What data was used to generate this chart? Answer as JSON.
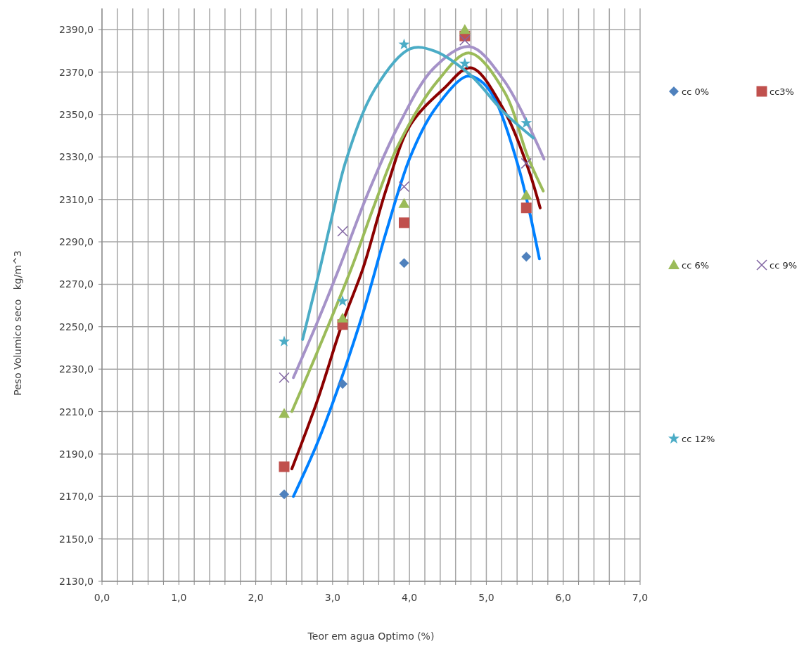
{
  "chart_data": {
    "type": "scatter",
    "xlabel": "Teor em agua Optimo (%)",
    "ylabel": "Peso Volumico seco   kg/m^3",
    "xlim": [
      0,
      7
    ],
    "ylim": [
      2130,
      2400
    ],
    "xticks": [
      {
        "value": 0,
        "label": "0,0"
      },
      {
        "value": 0.2,
        "label": null
      },
      {
        "value": 0.4,
        "label": null
      },
      {
        "value": 0.6,
        "label": null
      },
      {
        "value": 0.8,
        "label": null
      },
      {
        "value": 1,
        "label": "1,0"
      },
      {
        "value": 1.2,
        "label": null
      },
      {
        "value": 1.4,
        "label": null
      },
      {
        "value": 1.6,
        "label": null
      },
      {
        "value": 1.8,
        "label": null
      },
      {
        "value": 2,
        "label": "2,0"
      },
      {
        "value": 2.2,
        "label": null
      },
      {
        "value": 2.4,
        "label": null
      },
      {
        "value": 2.6,
        "label": null
      },
      {
        "value": 2.8,
        "label": null
      },
      {
        "value": 3,
        "label": "3,0"
      },
      {
        "value": 3.2,
        "label": null
      },
      {
        "value": 3.4,
        "label": null
      },
      {
        "value": 3.6,
        "label": null
      },
      {
        "value": 3.8,
        "label": null
      },
      {
        "value": 4,
        "label": "4,0"
      },
      {
        "value": 4.2,
        "label": null
      },
      {
        "value": 4.4,
        "label": null
      },
      {
        "value": 4.6,
        "label": null
      },
      {
        "value": 4.8,
        "label": null
      },
      {
        "value": 5,
        "label": "5,0"
      },
      {
        "value": 5.2,
        "label": null
      },
      {
        "value": 5.4,
        "label": null
      },
      {
        "value": 5.6,
        "label": null
      },
      {
        "value": 5.8,
        "label": null
      },
      {
        "value": 6,
        "label": "6,0"
      },
      {
        "value": 6.2,
        "label": null
      },
      {
        "value": 6.4,
        "label": null
      },
      {
        "value": 6.6,
        "label": null
      },
      {
        "value": 6.8,
        "label": null
      },
      {
        "value": 7,
        "label": "7,0"
      }
    ],
    "yticks": [
      {
        "value": 2130,
        "label": "2130,0"
      },
      {
        "value": 2150,
        "label": "2150,0"
      },
      {
        "value": 2170,
        "label": "2170,0"
      },
      {
        "value": 2190,
        "label": "2190,0"
      },
      {
        "value": 2210,
        "label": "2210,0"
      },
      {
        "value": 2230,
        "label": "2230,0"
      },
      {
        "value": 2250,
        "label": "2250,0"
      },
      {
        "value": 2270,
        "label": "2270,0"
      },
      {
        "value": 2290,
        "label": "2290,0"
      },
      {
        "value": 2310,
        "label": "2310,0"
      },
      {
        "value": 2330,
        "label": "2330,0"
      },
      {
        "value": 2350,
        "label": "2350,0"
      },
      {
        "value": 2370,
        "label": "2370,0"
      },
      {
        "value": 2390,
        "label": "2390,0"
      }
    ],
    "grid": true,
    "legend": "right",
    "series": [
      {
        "type": "line",
        "color": "#0080ff",
        "marker": "none",
        "x": [
          2.49,
          2.8,
          3.09,
          3.4,
          3.7,
          4.01,
          4.32,
          4.74,
          4.92,
          5.1,
          5.42,
          5.69
        ],
        "values": [
          2170,
          2195,
          2223,
          2257,
          2295,
          2330,
          2352,
          2368,
          2366,
          2358,
          2325,
          2282
        ]
      },
      {
        "type": "line",
        "color": "#8b0000",
        "marker": "none",
        "x": [
          2.47,
          2.8,
          3.13,
          3.4,
          3.7,
          4.01,
          4.44,
          4.8,
          5.23,
          5.54,
          5.7
        ],
        "values": [
          2183,
          2215,
          2252,
          2278,
          2315,
          2345,
          2362,
          2372,
          2352,
          2325,
          2306
        ]
      },
      {
        "type": "line",
        "color": "#9bbb59",
        "marker": "none",
        "x": [
          2.47,
          2.8,
          3.25,
          3.55,
          3.86,
          4.37,
          4.78,
          5.23,
          5.54,
          5.74
        ],
        "values": [
          2210,
          2238,
          2278,
          2308,
          2336,
          2366,
          2379,
          2361,
          2330,
          2314
        ]
      },
      {
        "type": "line",
        "color": "#a592c8",
        "marker": "none",
        "x": [
          2.49,
          2.8,
          3.09,
          3.45,
          3.86,
          4.32,
          4.78,
          5.23,
          5.75
        ],
        "values": [
          2226,
          2252,
          2278,
          2312,
          2345,
          2372,
          2382,
          2366,
          2329
        ]
      },
      {
        "type": "line",
        "color": "#4bacc6",
        "marker": "none",
        "x": [
          2.61,
          2.84,
          3.0,
          3.18,
          3.55,
          4.01,
          4.32,
          4.78,
          5.23,
          5.61
        ],
        "values": [
          2244,
          2278,
          2303,
          2329,
          2362,
          2381,
          2380,
          2369,
          2351,
          2339
        ]
      },
      {
        "name": "cc 0%",
        "color": "#4f81bd",
        "marker": "diamond",
        "x": [
          2.37,
          3.13,
          3.93,
          4.72,
          5.52
        ],
        "values": [
          2171,
          2223,
          2280,
          null,
          2283
        ]
      },
      {
        "name": "cc3%",
        "color": "#c0504d",
        "marker": "square",
        "x": [
          2.37,
          3.13,
          3.93,
          4.72,
          5.52
        ],
        "values": [
          2184,
          2251,
          2299,
          2387,
          2306
        ]
      },
      {
        "name": "cc 6%",
        "color": "#9bbb59",
        "marker": "triangle",
        "x": [
          2.37,
          3.13,
          3.93,
          4.72,
          5.52
        ],
        "values": [
          2209,
          2254,
          2308,
          2390,
          2312
        ]
      },
      {
        "name": "cc 9%",
        "color": "#8064a2",
        "marker": "cross",
        "x": [
          2.37,
          3.13,
          3.93,
          4.72,
          5.52
        ],
        "values": [
          2226,
          2295,
          2316,
          2385,
          2327
        ]
      },
      {
        "name": "cc 12%",
        "color": "#4bacc6",
        "marker": "star",
        "x": [
          2.37,
          3.13,
          3.93,
          4.72,
          5.52
        ],
        "values": [
          2243,
          2262,
          2383,
          2374,
          2346
        ]
      }
    ]
  }
}
